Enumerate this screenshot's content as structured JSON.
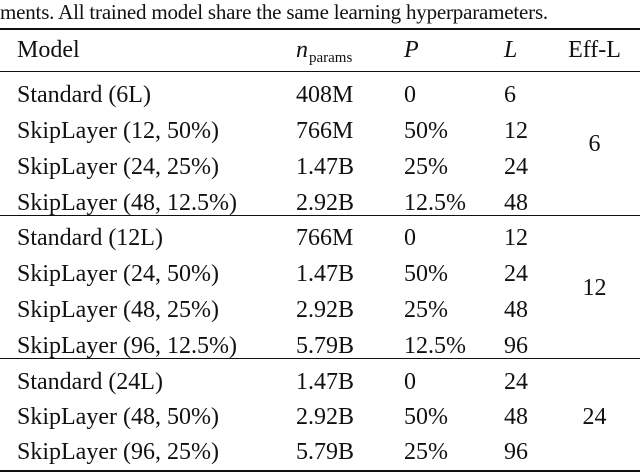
{
  "caption_tail": "ments. All trained model share the same learning hyperparameters.",
  "table": {
    "headers": {
      "model": "Model",
      "params_symbol": "n",
      "params_subscript": "params",
      "p": "P",
      "l": "L",
      "eff_l": "Eff-L"
    },
    "groups": [
      {
        "eff_l": "6",
        "rows": [
          {
            "model": "Standard (6L)",
            "params": "408M",
            "p": "0",
            "l": "6"
          },
          {
            "model": "SkipLayer (12, 50%)",
            "params": "766M",
            "p": "50%",
            "l": "12"
          },
          {
            "model": "SkipLayer (24, 25%)",
            "params": "1.47B",
            "p": "25%",
            "l": "24"
          },
          {
            "model": "SkipLayer (48, 12.5%)",
            "params": "2.92B",
            "p": "12.5%",
            "l": "48"
          }
        ]
      },
      {
        "eff_l": "12",
        "rows": [
          {
            "model": "Standard (12L)",
            "params": "766M",
            "p": "0",
            "l": "12"
          },
          {
            "model": "SkipLayer (24, 50%)",
            "params": "1.47B",
            "p": "50%",
            "l": "24"
          },
          {
            "model": "SkipLayer (48, 25%)",
            "params": "2.92B",
            "p": "25%",
            "l": "48"
          },
          {
            "model": "SkipLayer (96, 12.5%)",
            "params": "5.79B",
            "p": "12.5%",
            "l": "96"
          }
        ]
      },
      {
        "eff_l": "24",
        "rows": [
          {
            "model": "Standard (24L)",
            "params": "1.47B",
            "p": "0",
            "l": "24"
          },
          {
            "model": "SkipLayer (48, 50%)",
            "params": "2.92B",
            "p": "50%",
            "l": "48"
          },
          {
            "model": "SkipLayer (96, 25%)",
            "params": "5.79B",
            "p": "25%",
            "l": "96"
          }
        ]
      }
    ]
  }
}
